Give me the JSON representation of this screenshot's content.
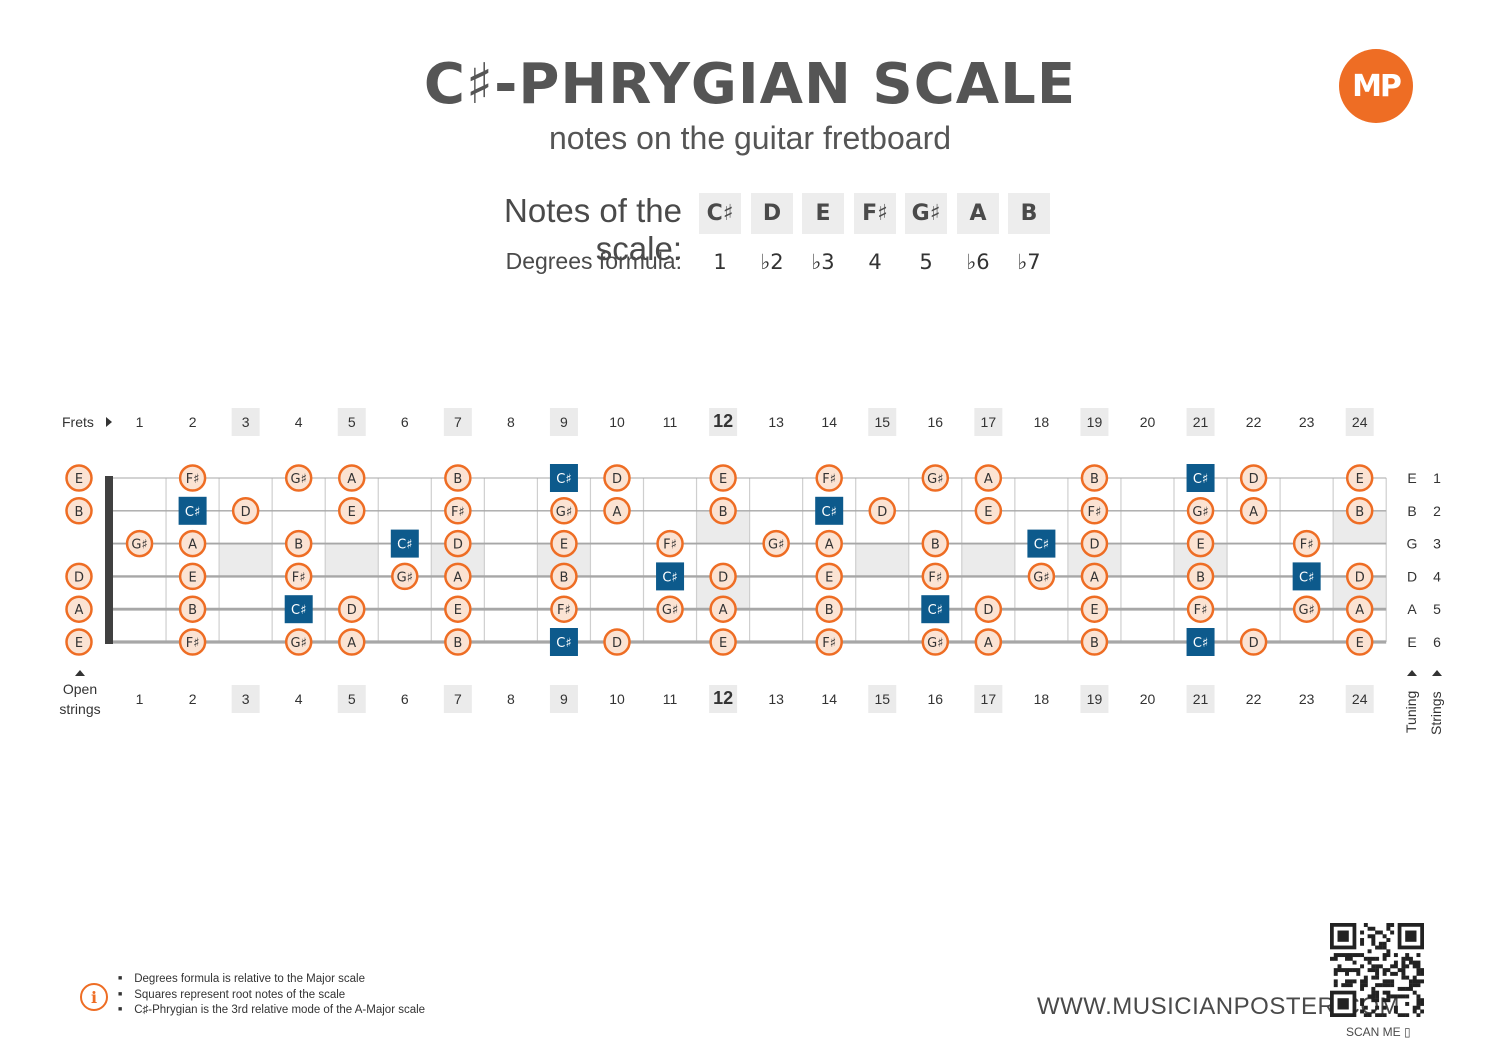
{
  "header": {
    "title": "C♯-PHRYGIAN SCALE",
    "subtitle": "notes on the guitar fretboard",
    "logo_text": "MP",
    "notes_label": "Notes of the scale:",
    "degrees_label": "Degrees formula:"
  },
  "scale": {
    "notes": [
      "C♯",
      "D",
      "E",
      "F♯",
      "G♯",
      "A",
      "B"
    ],
    "degrees": [
      "1",
      "♭2",
      "♭3",
      "4",
      "5",
      "♭6",
      "♭7"
    ],
    "root": "C♯"
  },
  "fretboard": {
    "frets_label": "Frets",
    "open_label_line1": "Open",
    "open_label_line2": "strings",
    "tuning_label": "Tuning",
    "strings_label": "Strings",
    "fret_numbers": [
      "1",
      "2",
      "3",
      "4",
      "5",
      "6",
      "7",
      "8",
      "9",
      "10",
      "11",
      "12",
      "13",
      "14",
      "15",
      "16",
      "17",
      "18",
      "19",
      "20",
      "21",
      "22",
      "23",
      "24"
    ],
    "highlighted_frets": [
      3,
      5,
      7,
      9,
      12,
      15,
      17,
      19,
      21,
      24
    ],
    "bold_frets": [
      12
    ],
    "strings": [
      {
        "number": "1",
        "tuning": "E",
        "open": "E",
        "notes": [
          "",
          "F♯",
          "",
          "G♯",
          "A",
          "",
          "B",
          "",
          "C♯",
          "D",
          "",
          "E",
          "",
          "F♯",
          "",
          "G♯",
          "A",
          "",
          "B",
          "",
          "C♯",
          "D",
          "",
          "E"
        ]
      },
      {
        "number": "2",
        "tuning": "B",
        "open": "B",
        "notes": [
          "",
          "C♯",
          "D",
          "",
          "E",
          "",
          "F♯",
          "",
          "G♯",
          "A",
          "",
          "B",
          "",
          "C♯",
          "D",
          "",
          "E",
          "",
          "F♯",
          "",
          "G♯",
          "A",
          "",
          "B"
        ]
      },
      {
        "number": "3",
        "tuning": "G",
        "open": "",
        "notes": [
          "G♯",
          "A",
          "",
          "B",
          "",
          "C♯",
          "D",
          "",
          "E",
          "",
          "F♯",
          "",
          "G♯",
          "A",
          "",
          "B",
          "",
          "C♯",
          "D",
          "",
          "E",
          "",
          "F♯",
          ""
        ]
      },
      {
        "number": "4",
        "tuning": "D",
        "open": "D",
        "notes": [
          "",
          "E",
          "",
          "F♯",
          "",
          "G♯",
          "A",
          "",
          "B",
          "",
          "C♯",
          "D",
          "",
          "E",
          "",
          "F♯",
          "",
          "G♯",
          "A",
          "",
          "B",
          "",
          "C♯",
          "D"
        ]
      },
      {
        "number": "5",
        "tuning": "A",
        "open": "A",
        "notes": [
          "",
          "B",
          "",
          "C♯",
          "D",
          "",
          "E",
          "",
          "F♯",
          "",
          "G♯",
          "A",
          "",
          "B",
          "",
          "C♯",
          "D",
          "",
          "E",
          "",
          "F♯",
          "",
          "G♯",
          "A"
        ]
      },
      {
        "number": "6",
        "tuning": "E",
        "open": "E",
        "notes": [
          "",
          "F♯",
          "",
          "G♯",
          "A",
          "",
          "B",
          "",
          "C♯",
          "D",
          "",
          "E",
          "",
          "F♯",
          "",
          "G♯",
          "A",
          "",
          "B",
          "",
          "C♯",
          "D",
          "",
          "E"
        ]
      }
    ]
  },
  "colors": {
    "accent": "#ee6d24",
    "root_fill": "#0d5a8c",
    "note_fill": "#fbe3d3",
    "text": "#4a4a4a",
    "highlight": "#ededed"
  },
  "footer": {
    "notes": [
      "Degrees formula is relative to the Major scale",
      "Squares represent root notes of the scale",
      "C♯-Phrygian is the 3rd relative mode of the A-Major scale"
    ],
    "website": "WWW.MUSICIANPOSTER.COM",
    "scan_me": "SCAN ME"
  }
}
